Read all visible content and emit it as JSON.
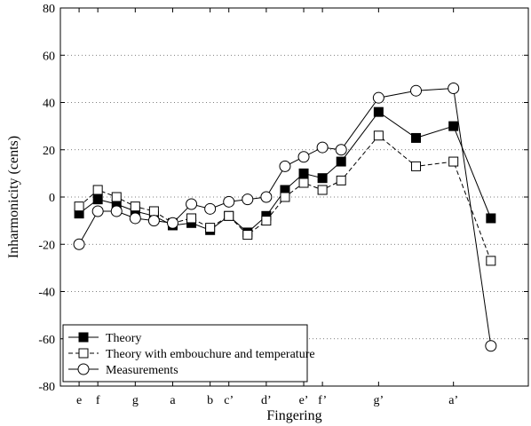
{
  "chart_data": {
    "type": "line",
    "title": "",
    "xlabel": "Fingering",
    "ylabel": "Inharmonicity (cents)",
    "ylim": [
      -80,
      80
    ],
    "yticks": [
      -80,
      -60,
      -40,
      -20,
      0,
      20,
      40,
      60,
      80
    ],
    "xlim": [
      0,
      25
    ],
    "grid": true,
    "legend_position": "bottom-left",
    "xticks": [
      {
        "x": 1,
        "label": "e"
      },
      {
        "x": 2,
        "label": "f"
      },
      {
        "x": 4,
        "label": "g"
      },
      {
        "x": 6,
        "label": "a"
      },
      {
        "x": 8,
        "label": "b"
      },
      {
        "x": 9,
        "label": "c’"
      },
      {
        "x": 11,
        "label": "d’"
      },
      {
        "x": 13,
        "label": "e’"
      },
      {
        "x": 14,
        "label": "f’"
      },
      {
        "x": 17,
        "label": "g’"
      },
      {
        "x": 21,
        "label": "a’"
      }
    ],
    "series": [
      {
        "name": "Theory",
        "marker": "filled-square",
        "dash": "solid",
        "x": [
          1,
          2,
          3,
          4,
          5,
          6,
          7,
          8,
          9,
          10,
          11,
          12,
          13,
          14,
          15,
          17,
          19,
          21,
          23
        ],
        "y": [
          -7,
          -1,
          -3,
          -6,
          -8,
          -12,
          -11,
          -14,
          -8,
          -15,
          -8,
          3,
          10,
          8,
          15,
          36,
          25,
          30,
          -9
        ]
      },
      {
        "name": "Theory with embouchure and temperature",
        "marker": "open-square",
        "dash": "dashed",
        "x": [
          1,
          2,
          3,
          4,
          5,
          6,
          7,
          8,
          9,
          10,
          11,
          12,
          13,
          14,
          15,
          17,
          19,
          21,
          23
        ],
        "y": [
          -4,
          3,
          0,
          -4,
          -6,
          -11,
          -9,
          -13,
          -8,
          -16,
          -10,
          0,
          6,
          3,
          7,
          26,
          13,
          15,
          -27
        ]
      },
      {
        "name": "Measurements",
        "marker": "open-circle",
        "dash": "solid",
        "x": [
          1,
          2,
          3,
          4,
          5,
          6,
          7,
          8,
          9,
          10,
          11,
          12,
          13,
          14,
          15,
          17,
          19,
          21,
          23
        ],
        "y": [
          -20,
          -6,
          -6,
          -9,
          -10,
          -11,
          -3,
          -5,
          -2,
          -1,
          0,
          13,
          17,
          21,
          20,
          42,
          45,
          46,
          -63
        ]
      }
    ]
  }
}
